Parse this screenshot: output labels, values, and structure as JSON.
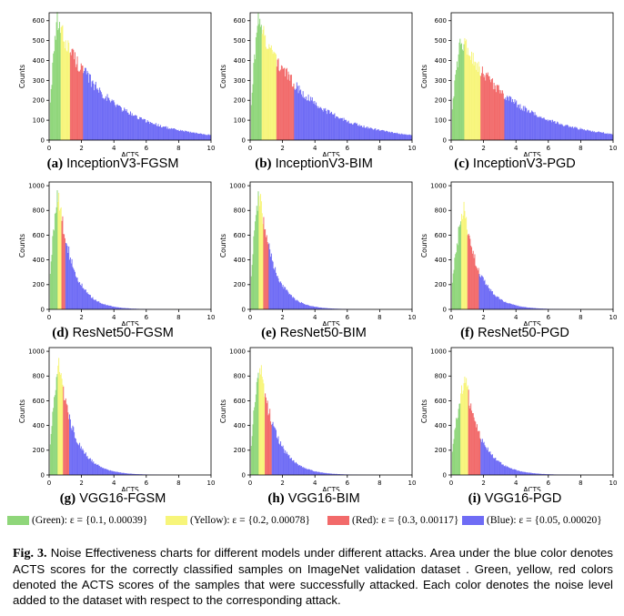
{
  "colors": {
    "green": "#8fd67a",
    "yellow": "#f7f57a",
    "red": "#f26a6a",
    "blue": "#6f6cf5"
  },
  "chart_data": [
    {
      "type": "bar",
      "id": "a",
      "letter": "(a)",
      "title": "InceptionV3-FGSM",
      "xlabel": "ACTS",
      "ylabel": "Counts",
      "xlim": [
        0,
        10
      ],
      "ylim": [
        0,
        640
      ],
      "xticks": [
        "0",
        "2",
        "4",
        "6",
        "8",
        "10"
      ],
      "yticks": [
        "0",
        "100",
        "200",
        "300",
        "400",
        "500",
        "600"
      ],
      "peak": 590,
      "mode": 0.5,
      "decay": 0.33,
      "green_max": 0.72,
      "yellow_max": 1.3,
      "red_max": 2.1
    },
    {
      "type": "bar",
      "id": "b",
      "letter": "(b)",
      "title": "InceptionV3-BIM",
      "xlabel": "ACTS",
      "ylabel": "Counts",
      "xlim": [
        0,
        10
      ],
      "ylim": [
        0,
        640
      ],
      "xticks": [
        "0",
        "2",
        "4",
        "6",
        "8",
        "10"
      ],
      "yticks": [
        "0",
        "100",
        "200",
        "300",
        "400",
        "500",
        "600"
      ],
      "peak": 590,
      "mode": 0.5,
      "decay": 0.33,
      "green_max": 0.72,
      "yellow_max": 1.6,
      "red_max": 2.7
    },
    {
      "type": "bar",
      "id": "c",
      "letter": "(c)",
      "title": "InceptionV3-PGD",
      "xlabel": "ACTS",
      "ylabel": "Counts",
      "xlim": [
        0,
        10
      ],
      "ylim": [
        0,
        640
      ],
      "xticks": [
        "0",
        "2",
        "4",
        "6",
        "8",
        "10"
      ],
      "yticks": [
        "0",
        "100",
        "200",
        "300",
        "400",
        "500",
        "600"
      ],
      "peak": 510,
      "mode": 0.6,
      "decay": 0.3,
      "green_max": 0.8,
      "yellow_max": 1.8,
      "red_max": 3.3
    },
    {
      "type": "bar",
      "id": "d",
      "letter": "(d)",
      "title": "ResNet50-FGSM",
      "xlabel": "ACTS",
      "ylabel": "Counts",
      "xlim": [
        0,
        10
      ],
      "ylim": [
        0,
        1030
      ],
      "xticks": [
        "0",
        "2",
        "4",
        "6",
        "8",
        "10"
      ],
      "yticks": [
        "0",
        "200",
        "400",
        "600",
        "800",
        "1000"
      ],
      "peak": 960,
      "mode": 0.55,
      "decay": 1.1,
      "green_max": 0.5,
      "yellow_max": 0.75,
      "red_max": 1.0
    },
    {
      "type": "bar",
      "id": "e",
      "letter": "(e)",
      "title": "ResNet50-BIM",
      "xlabel": "ACTS",
      "ylabel": "Counts",
      "xlim": [
        0,
        10
      ],
      "ylim": [
        0,
        1030
      ],
      "xticks": [
        "0",
        "2",
        "4",
        "6",
        "8",
        "10"
      ],
      "yticks": [
        "0",
        "200",
        "400",
        "600",
        "800",
        "1000"
      ],
      "peak": 960,
      "mode": 0.55,
      "decay": 1.1,
      "green_max": 0.5,
      "yellow_max": 0.8,
      "red_max": 1.15
    },
    {
      "type": "bar",
      "id": "f",
      "letter": "(f)",
      "title": "ResNet50-PGD",
      "xlabel": "ACTS",
      "ylabel": "Counts",
      "xlim": [
        0,
        10
      ],
      "ylim": [
        0,
        1030
      ],
      "xticks": [
        "0",
        "2",
        "4",
        "6",
        "8",
        "10"
      ],
      "yticks": [
        "0",
        "200",
        "400",
        "600",
        "800",
        "1000"
      ],
      "peak": 820,
      "mode": 0.75,
      "decay": 1.0,
      "green_max": 0.6,
      "yellow_max": 1.0,
      "red_max": 1.7
    },
    {
      "type": "bar",
      "id": "g",
      "letter": "(g)",
      "title": "VGG16-FGSM",
      "xlabel": "ACTS",
      "ylabel": "Counts",
      "xlim": [
        0,
        10
      ],
      "ylim": [
        0,
        1030
      ],
      "xticks": [
        "0",
        "2",
        "4",
        "6",
        "8",
        "10"
      ],
      "yticks": [
        "0",
        "200",
        "400",
        "600",
        "800",
        "1000"
      ],
      "peak": 880,
      "mode": 0.6,
      "decay": 1.0,
      "green_max": 0.5,
      "yellow_max": 0.85,
      "red_max": 1.25
    },
    {
      "type": "bar",
      "id": "h",
      "letter": "(h)",
      "title": "VGG16-BIM",
      "xlabel": "ACTS",
      "ylabel": "Counts",
      "xlim": [
        0,
        10
      ],
      "ylim": [
        0,
        1030
      ],
      "xticks": [
        "0",
        "2",
        "4",
        "6",
        "8",
        "10"
      ],
      "yticks": [
        "0",
        "200",
        "400",
        "600",
        "800",
        "1000"
      ],
      "peak": 900,
      "mode": 0.6,
      "decay": 1.0,
      "green_max": 0.5,
      "yellow_max": 0.9,
      "red_max": 1.35
    },
    {
      "type": "bar",
      "id": "i",
      "letter": "(i)",
      "title": "VGG16-PGD",
      "xlabel": "ACTS",
      "ylabel": "Counts",
      "xlim": [
        0,
        10
      ],
      "ylim": [
        0,
        1030
      ],
      "xticks": [
        "0",
        "2",
        "4",
        "6",
        "8",
        "10"
      ],
      "yticks": [
        "0",
        "200",
        "400",
        "600",
        "800",
        "1000"
      ],
      "peak": 780,
      "mode": 0.85,
      "decay": 0.95,
      "green_max": 0.55,
      "yellow_max": 1.05,
      "red_max": 1.8
    }
  ],
  "legend": [
    {
      "label": "(Green): ε = {0.1, 0.00039}",
      "color": "#8fd67a"
    },
    {
      "label": "(Yellow): ε = {0.2, 0.00078}",
      "color": "#f7f57a"
    },
    {
      "label": "(Red): ε = {0.3, 0.00117}",
      "color": "#f26a6a"
    },
    {
      "label": "(Blue): ε = {0.05, 0.00020}",
      "color": "#6f6cf5"
    }
  ],
  "figure_caption": {
    "label": "Fig. 3.",
    "text": "Noise Effectiveness charts for different models under different attacks. Area under the blue color denotes ACTS scores for the correctly classified samples on ImageNet validation dataset . Green, yellow, red colors denoted the ACTS scores of the samples that were successfully attacked. Each color denotes the noise level added to the dataset with respect to the corresponding attack."
  }
}
